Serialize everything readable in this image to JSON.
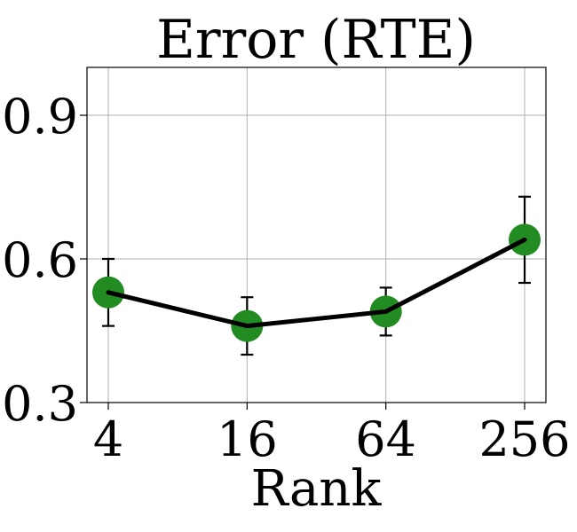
{
  "chart_data": {
    "type": "line",
    "title": "Error (RTE)",
    "xlabel": "Rank",
    "ylabel": "",
    "categories": [
      "4",
      "16",
      "64",
      "256"
    ],
    "yticks": [
      "0.3",
      "0.6",
      "0.9"
    ],
    "ylim": [
      0.3,
      1.0
    ],
    "grid": true,
    "series": [
      {
        "values": [
          0.53,
          0.46,
          0.49,
          0.64
        ],
        "err_low": [
          0.46,
          0.4,
          0.44,
          0.55
        ],
        "err_high": [
          0.6,
          0.52,
          0.54,
          0.73
        ],
        "line_color": "#000000",
        "marker_color": "#228b22"
      }
    ]
  }
}
